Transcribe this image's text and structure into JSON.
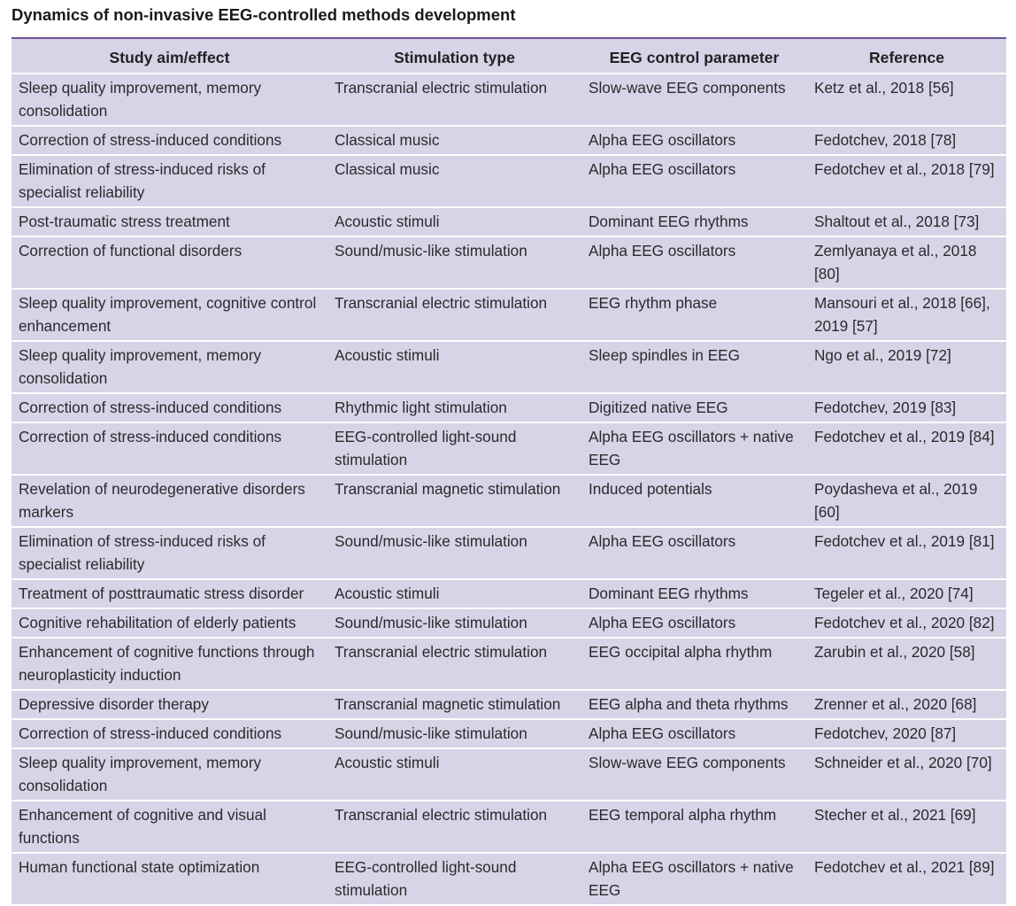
{
  "title": "Dynamics of non-invasive EEG-controlled methods development",
  "table": {
    "headers": [
      "Study aim/effect",
      "Stimulation type",
      "EEG control parameter",
      "Reference"
    ],
    "rows": [
      [
        "Sleep quality improvement, memory consolidation",
        "Transcranial electric stimulation",
        "Slow-wave EEG components",
        "Ketz et al., 2018 [56]"
      ],
      [
        "Correction of stress-induced conditions",
        "Classical music",
        "Alpha EEG oscillators",
        "Fedotchev, 2018 [78]"
      ],
      [
        "Elimination of stress-induced risks of specialist reliability",
        "Classical music",
        "Alpha EEG oscillators",
        "Fedotchev et al., 2018 [79]"
      ],
      [
        "Post-traumatic stress treatment",
        "Acoustic stimuli",
        "Dominant EEG rhythms",
        "Shaltout et al., 2018 [73]"
      ],
      [
        "Correction of functional disorders",
        "Sound/music-like stimulation",
        "Alpha EEG oscillators",
        "Zemlyanaya et al., 2018 [80]"
      ],
      [
        "Sleep quality improvement, cognitive control enhancement",
        "Transcranial electric stimulation",
        "EEG rhythm phase",
        "Mansouri et al., 2018 [66], 2019 [57]"
      ],
      [
        "Sleep quality improvement, memory consolidation",
        "Acoustic stimuli",
        "Sleep spindles in EEG",
        "Ngo et al., 2019 [72]"
      ],
      [
        "Correction of stress-induced conditions",
        "Rhythmic light stimulation",
        "Digitized native EEG",
        "Fedotchev, 2019 [83]"
      ],
      [
        "Correction of stress-induced conditions",
        "EEG-controlled light-sound stimulation",
        "Alpha EEG oscillators + native EEG",
        "Fedotchev et al., 2019 [84]"
      ],
      [
        "Revelation of neurodegenerative disorders markers",
        "Transcranial magnetic stimulation",
        "Induced potentials",
        "Poydasheva et al., 2019 [60]"
      ],
      [
        "Elimination of stress-induced risks of specialist reliability",
        "Sound/music-like stimulation",
        "Alpha EEG oscillators",
        "Fedotchev et al., 2019 [81]"
      ],
      [
        "Treatment of posttraumatic stress disorder",
        "Acoustic stimuli",
        "Dominant EEG rhythms",
        "Tegeler et al., 2020 [74]"
      ],
      [
        "Cognitive rehabilitation of elderly patients",
        "Sound/music-like stimulation",
        "Alpha EEG oscillators",
        "Fedotchev et al., 2020 [82]"
      ],
      [
        "Enhancement of cognitive functions through neuroplasticity induction",
        "Transcranial electric stimulation",
        "EEG occipital alpha rhythm",
        "Zarubin et al., 2020 [58]"
      ],
      [
        "Depressive disorder therapy",
        "Transcranial magnetic stimulation",
        "EEG alpha and theta rhythms",
        "Zrenner et al., 2020 [68]"
      ],
      [
        "Correction of stress-induced conditions",
        "Sound/music-like stimulation",
        "Alpha EEG oscillators",
        "Fedotchev, 2020 [87]"
      ],
      [
        "Sleep quality improvement, memory consolidation",
        "Acoustic stimuli",
        "Slow-wave EEG components",
        "Schneider et al., 2020 [70]"
      ],
      [
        "Enhancement of cognitive and visual functions",
        "Transcranial electric stimulation",
        "EEG temporal alpha rhythm",
        "Stecher et al., 2021 [69]"
      ],
      [
        "Human functional state optimization",
        "EEG-controlled light-sound stimulation",
        "Alpha EEG oscillators + native EEG",
        "Fedotchev et al., 2021 [89]"
      ]
    ]
  },
  "colors": {
    "table_background": "#d7d4e8",
    "header_rule": "#6a5396",
    "row_divider": "#ffffff"
  }
}
